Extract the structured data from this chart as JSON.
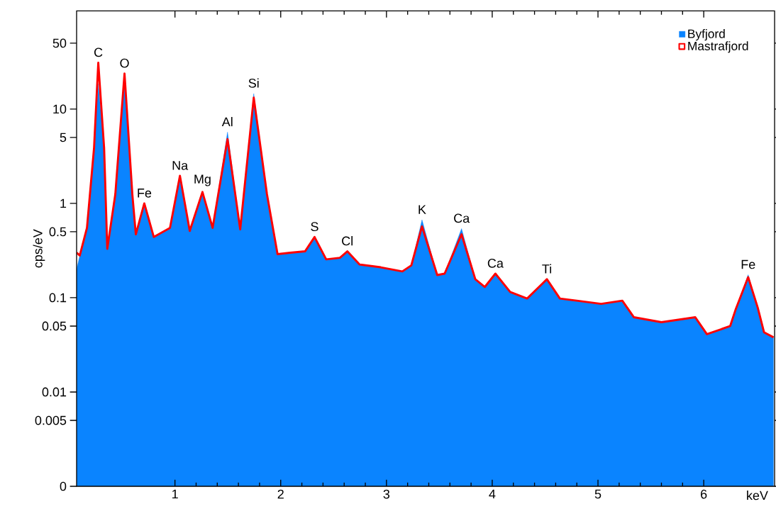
{
  "chart_data": {
    "type": "area",
    "xlabel": "keV",
    "ylabel": "cps/eV",
    "log": "y",
    "legend": "top right",
    "xlim": [
      0.07,
      6.67
    ],
    "ylim": [
      0.001,
      110
    ],
    "xticks": [
      1,
      2,
      3,
      4,
      5,
      6
    ],
    "yticks": [
      {
        "value": 0.001,
        "label": "0"
      },
      0.005,
      0.01,
      0.05,
      0.1,
      0.5,
      1,
      5,
      10,
      50
    ],
    "x": [
      0.07,
      0.1,
      0.168,
      0.235,
      0.275,
      0.33,
      0.36,
      0.436,
      0.523,
      0.597,
      0.63,
      0.71,
      0.8,
      0.953,
      1.047,
      1.14,
      1.26,
      1.356,
      1.497,
      1.617,
      1.745,
      1.87,
      1.97,
      2.09,
      2.23,
      2.32,
      2.43,
      2.56,
      2.63,
      2.745,
      2.946,
      3.15,
      3.235,
      3.336,
      3.48,
      3.55,
      3.71,
      3.84,
      3.93,
      4.03,
      4.17,
      4.33,
      4.517,
      4.64,
      4.8,
      5.03,
      5.23,
      5.34,
      5.6,
      5.92,
      6.03,
      6.25,
      6.3,
      6.42,
      6.51,
      6.57,
      6.66
    ],
    "series": [
      {
        "name": "Byfjord",
        "color": "#0a84ff",
        "values": [
          0.2,
          0.28,
          0.55,
          3.9,
          18.6,
          3.9,
          0.33,
          1.25,
          23.8,
          1.25,
          0.47,
          1.0,
          0.44,
          0.55,
          1.96,
          0.51,
          1.32,
          0.55,
          5.7,
          0.53,
          14.6,
          1.25,
          0.29,
          0.3,
          0.31,
          0.44,
          0.255,
          0.265,
          0.31,
          0.225,
          0.21,
          0.19,
          0.22,
          0.67,
          0.174,
          0.18,
          0.54,
          0.157,
          0.13,
          0.18,
          0.115,
          0.098,
          0.157,
          0.098,
          0.093,
          0.086,
          0.093,
          0.062,
          0.055,
          0.062,
          0.041,
          0.05,
          0.074,
          0.175,
          0.079,
          0.043,
          0.038
        ]
      },
      {
        "name": "Mastrafjord",
        "type": "line",
        "color": "#ff0000",
        "values": [
          0.3,
          0.28,
          0.55,
          3.9,
          31,
          3.9,
          0.33,
          1.25,
          23.8,
          1.25,
          0.47,
          1.0,
          0.44,
          0.55,
          1.96,
          0.51,
          1.32,
          0.55,
          4.8,
          0.53,
          13.2,
          1.25,
          0.29,
          0.3,
          0.31,
          0.44,
          0.255,
          0.265,
          0.31,
          0.225,
          0.21,
          0.19,
          0.22,
          0.57,
          0.174,
          0.18,
          0.47,
          0.157,
          0.13,
          0.18,
          0.115,
          0.098,
          0.157,
          0.098,
          0.093,
          0.086,
          0.093,
          0.062,
          0.055,
          0.062,
          0.041,
          0.05,
          0.074,
          0.165,
          0.079,
          0.043,
          0.038
        ]
      }
    ],
    "annotations": [
      {
        "text": "C",
        "x": 0.275,
        "y": 31
      },
      {
        "text": "O",
        "x": 0.523,
        "y": 23.8
      },
      {
        "text": "Fe",
        "x": 0.71,
        "y": 1.0
      },
      {
        "text": "Na",
        "x": 1.047,
        "y": 1.96
      },
      {
        "text": "Mg",
        "x": 1.26,
        "y": 1.32
      },
      {
        "text": "Al",
        "x": 1.497,
        "y": 5.7
      },
      {
        "text": "Si",
        "x": 1.745,
        "y": 14.6
      },
      {
        "text": "S",
        "x": 2.32,
        "y": 0.44
      },
      {
        "text": "Cl",
        "x": 2.63,
        "y": 0.31
      },
      {
        "text": "K",
        "x": 3.336,
        "y": 0.67
      },
      {
        "text": "Ca",
        "x": 3.71,
        "y": 0.54
      },
      {
        "text": "Ca",
        "x": 4.03,
        "y": 0.18
      },
      {
        "text": "Ti",
        "x": 4.517,
        "y": 0.157
      },
      {
        "text": "Fe",
        "x": 6.42,
        "y": 0.175
      }
    ]
  }
}
